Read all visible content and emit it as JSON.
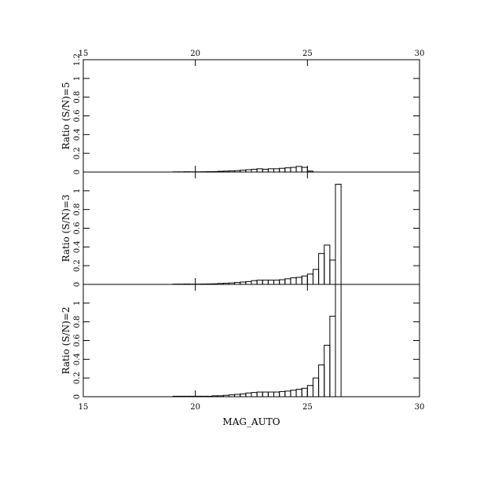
{
  "chart_data": [
    {
      "type": "histogram",
      "ylabel": "Ratio (S/N)=5",
      "bins": [
        19,
        19.25,
        19.5,
        19.75,
        20,
        20.25,
        20.5,
        20.75,
        21,
        21.25,
        21.5,
        21.75,
        22,
        22.25,
        22.5,
        22.75,
        23,
        23.25,
        23.5,
        23.75,
        24,
        24.25,
        24.5,
        24.75,
        25,
        25.25,
        25.5,
        25.75,
        26,
        26.25,
        26.5
      ],
      "values": [
        0.002,
        0.002,
        0.003,
        0.002,
        0.002,
        0.003,
        0.004,
        0.005,
        0.008,
        0.01,
        0.012,
        0.015,
        0.02,
        0.025,
        0.03,
        0.035,
        0.03,
        0.035,
        0.035,
        0.04,
        0.045,
        0.05,
        0.06,
        0.05,
        0.01,
        0,
        0,
        0,
        0,
        0
      ],
      "xlim": [
        15,
        30
      ],
      "xticks": [
        15,
        20,
        25,
        30
      ],
      "ylim": [
        0,
        1.2
      ],
      "yticks": [
        0,
        0.2,
        0.4,
        0.6,
        0.8,
        1,
        1.2
      ]
    },
    {
      "type": "histogram",
      "ylabel": "Ratio (S/N)=3",
      "bins": [
        19,
        19.25,
        19.5,
        19.75,
        20,
        20.25,
        20.5,
        20.75,
        21,
        21.25,
        21.5,
        21.75,
        22,
        22.25,
        22.5,
        22.75,
        23,
        23.25,
        23.5,
        23.75,
        24,
        24.25,
        24.5,
        24.75,
        25,
        25.25,
        25.5,
        25.75,
        26,
        26.25,
        26.5
      ],
      "values": [
        0.003,
        0.003,
        0.004,
        0.003,
        0.003,
        0.004,
        0.005,
        0.006,
        0.01,
        0.012,
        0.015,
        0.02,
        0.025,
        0.03,
        0.04,
        0.045,
        0.045,
        0.045,
        0.045,
        0.05,
        0.06,
        0.07,
        0.075,
        0.09,
        0.11,
        0.16,
        0.33,
        0.42,
        0.26,
        1.07
      ],
      "xlim": [
        15,
        30
      ],
      "xticks": [
        15,
        20,
        25,
        30
      ],
      "ylim": [
        0,
        1.2
      ],
      "yticks": [
        0,
        0.2,
        0.4,
        0.6,
        0.8,
        1
      ]
    },
    {
      "type": "histogram",
      "ylabel": "Ratio (S/N)=2",
      "xlabel": "MAG_AUTO",
      "bins": [
        19,
        19.25,
        19.5,
        19.75,
        20,
        20.25,
        20.5,
        20.75,
        21,
        21.25,
        21.5,
        21.75,
        22,
        22.25,
        22.5,
        22.75,
        23,
        23.25,
        23.5,
        23.75,
        24,
        24.25,
        24.5,
        24.75,
        25,
        25.25,
        25.5,
        25.75,
        26,
        26.25,
        26.5
      ],
      "values": [
        0.005,
        0.005,
        0.005,
        0.005,
        0.005,
        0.005,
        0.005,
        0.01,
        0.01,
        0.015,
        0.02,
        0.025,
        0.03,
        0.04,
        0.045,
        0.05,
        0.05,
        0.05,
        0.05,
        0.055,
        0.06,
        0.07,
        0.08,
        0.09,
        0.12,
        0.2,
        0.34,
        0.55,
        0.86,
        1.2
      ],
      "xlim": [
        15,
        30
      ],
      "xticks": [
        15,
        20,
        25,
        30
      ],
      "ylim": [
        0,
        1.2
      ],
      "yticks": [
        0,
        0.2,
        0.4,
        0.6,
        0.8,
        1
      ]
    }
  ]
}
